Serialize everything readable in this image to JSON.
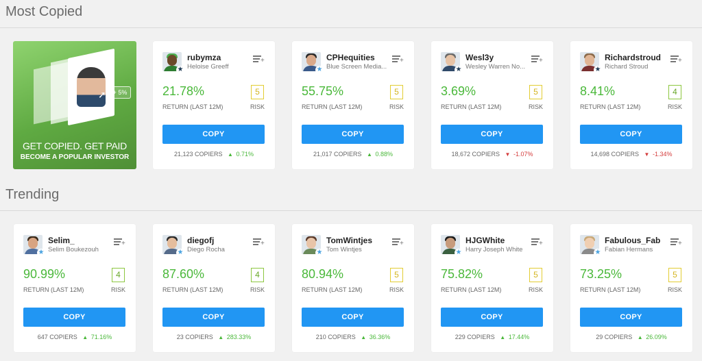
{
  "sections": [
    {
      "title": "Most Copied"
    },
    {
      "title": "Trending"
    }
  ],
  "promo": {
    "headline": "GET COPIED. GET PAID",
    "subline": "BECOME A POPULAR INVESTOR",
    "badge": "+ 5%"
  },
  "labels": {
    "return": "RETURN (LAST 12M)",
    "risk": "RISK",
    "copy": "COPY",
    "copiers_suffix": " COPIERS"
  },
  "most_copied": [
    {
      "username": "rubymza",
      "fullname": "Heloise Greeff",
      "return": "21.78%",
      "risk": "5",
      "copiers": "21,123",
      "change": "0.71%",
      "direction": "up",
      "star": "dark"
    },
    {
      "username": "CPHequities",
      "fullname": "Blue Screen Media...",
      "return": "55.75%",
      "risk": "5",
      "copiers": "21,017",
      "change": "0.88%",
      "direction": "up",
      "star": "light"
    },
    {
      "username": "Wesl3y",
      "fullname": "Wesley Warren No...",
      "return": "3.69%",
      "risk": "5",
      "copiers": "18,672",
      "change": "-1.07%",
      "direction": "down",
      "star": "dark"
    },
    {
      "username": "Richardstroud",
      "fullname": "Richard Stroud",
      "return": "8.41%",
      "risk": "4",
      "copiers": "14,698",
      "change": "-1.34%",
      "direction": "down",
      "star": "dark"
    }
  ],
  "trending": [
    {
      "username": "Selim_",
      "fullname": "Selim Boukezouh",
      "return": "90.99%",
      "risk": "4",
      "copiers": "647",
      "change": "71.16%",
      "direction": "up",
      "star": "light"
    },
    {
      "username": "diegofj",
      "fullname": "Diego Rocha",
      "return": "87.60%",
      "risk": "4",
      "copiers": "23",
      "change": "283.33%",
      "direction": "up",
      "star": "light"
    },
    {
      "username": "TomWintjes",
      "fullname": "Tom Wintjes",
      "return": "80.94%",
      "risk": "5",
      "copiers": "210",
      "change": "36.36%",
      "direction": "up",
      "star": "light"
    },
    {
      "username": "HJGWhite",
      "fullname": "Harry Joseph White",
      "return": "75.82%",
      "risk": "5",
      "copiers": "229",
      "change": "17.44%",
      "direction": "up",
      "star": "light"
    },
    {
      "username": "Fabulous_Fab",
      "fullname": "Fabian Hermans",
      "return": "73.25%",
      "risk": "5",
      "copiers": "29",
      "change": "26.09%",
      "direction": "up",
      "star": "light"
    }
  ],
  "colors": {
    "accent": "#2196f3",
    "positive": "#4ab83a",
    "negative": "#d43b3b",
    "risk5": "#e2cc32",
    "risk4": "#8cc63f"
  }
}
